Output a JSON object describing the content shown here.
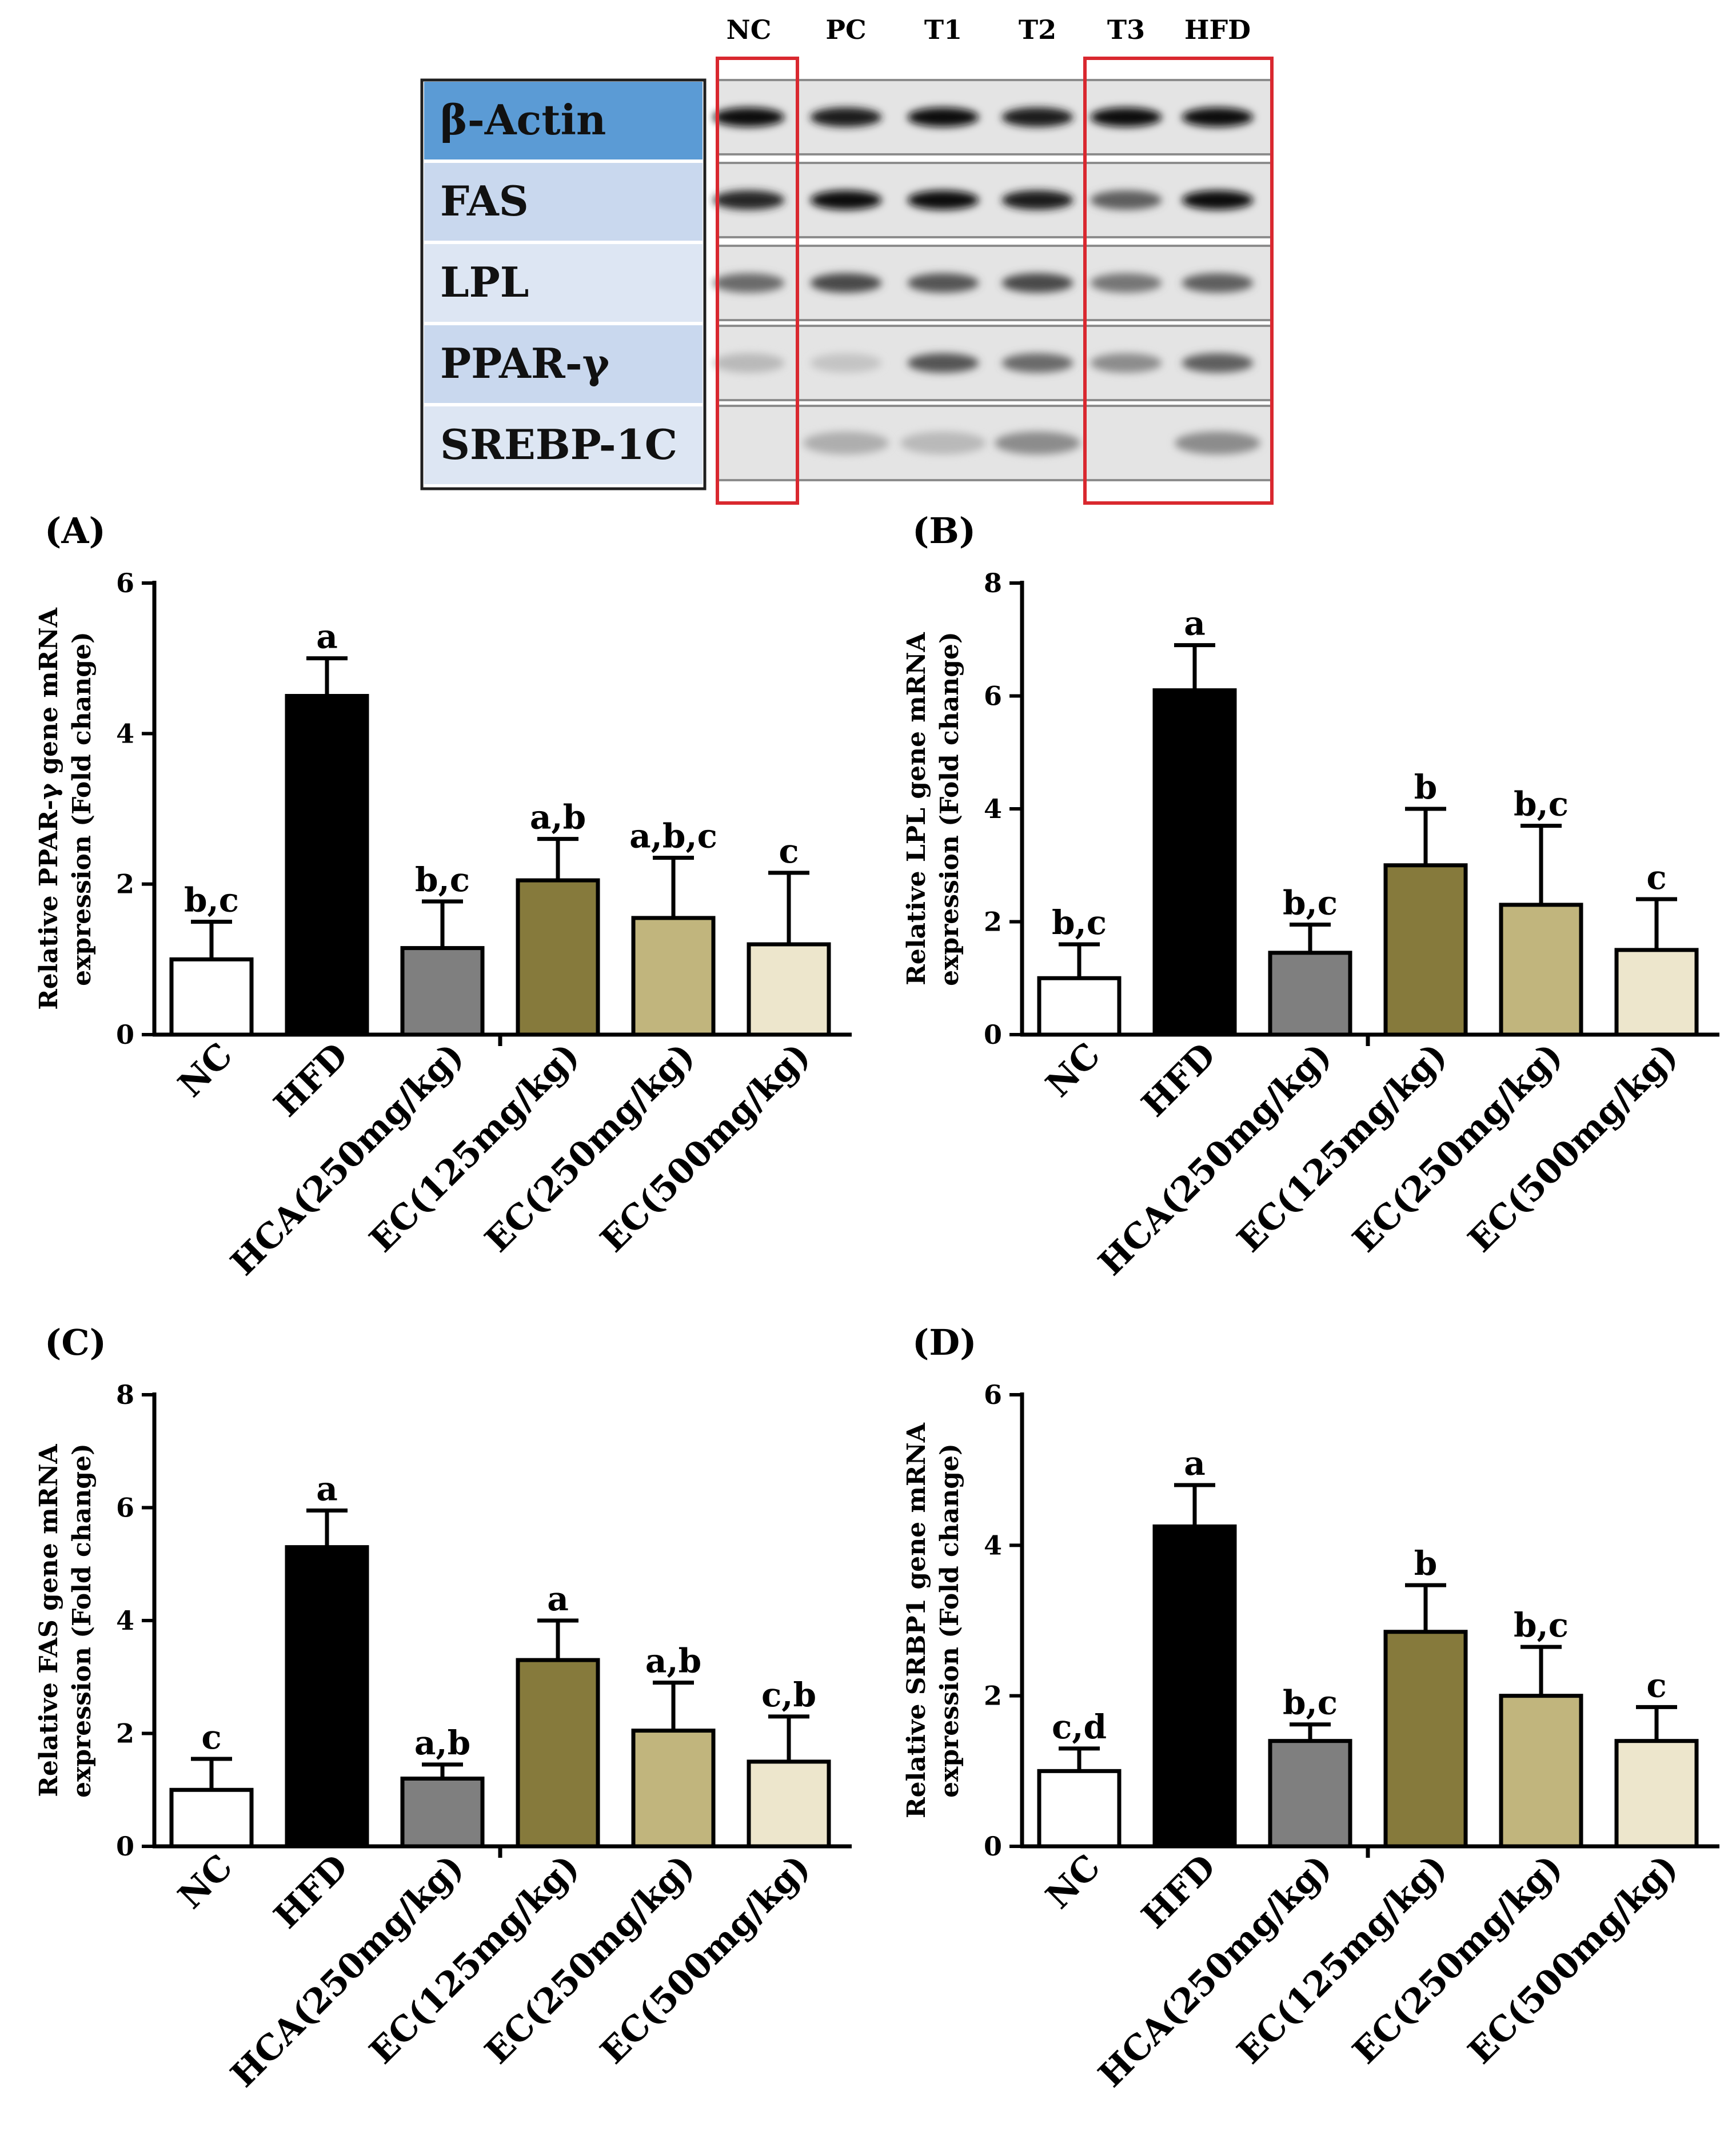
{
  "blot": {
    "lanes": [
      "NC",
      "PC",
      "T1",
      "T2",
      "T3",
      "HFD"
    ],
    "rows": [
      "β-Actin",
      "FAS",
      "LPL",
      "PPAR-γ",
      "SREBP-1C"
    ],
    "row_colors": [
      "#5b9bd5",
      "#c9d8ee",
      "#dde6f3",
      "#c9d8ee",
      "#dde6f3"
    ],
    "highlight_color": "#d9282f",
    "band_intensity": [
      [
        0.95,
        0.9,
        0.95,
        0.9,
        0.95,
        0.95
      ],
      [
        0.85,
        0.95,
        0.95,
        0.9,
        0.6,
        0.95
      ],
      [
        0.55,
        0.7,
        0.65,
        0.7,
        0.5,
        0.6
      ],
      [
        0.2,
        0.15,
        0.65,
        0.55,
        0.4,
        0.6
      ],
      [
        0.0,
        0.25,
        0.2,
        0.4,
        0.0,
        0.4
      ]
    ]
  },
  "chart_data": [
    {
      "panel": "(A)",
      "type": "bar",
      "ylabel": [
        "Relative PPAR-γ gene mRNA",
        "expression (Fold change)"
      ],
      "ylim": [
        0,
        6
      ],
      "yticks": [
        0,
        2,
        4,
        6
      ],
      "categories": [
        "NC",
        "HFD",
        "HCA(250mg/kg)",
        "EC(125mg/kg)",
        "EC(250mg/kg)",
        "EC(500mg/kg)"
      ],
      "values": [
        1.0,
        4.5,
        1.15,
        2.05,
        1.55,
        1.2
      ],
      "errors": [
        0.5,
        0.5,
        0.62,
        0.55,
        0.8,
        0.95
      ],
      "letters": [
        "b,c",
        "a",
        "b,c",
        "a,b",
        "a,b,c",
        "c"
      ],
      "colors": [
        "#ffffff",
        "#000000",
        "#7f7f7f",
        "#867a3c",
        "#c1b57d",
        "#ede6cc"
      ]
    },
    {
      "panel": "(B)",
      "type": "bar",
      "ylabel": [
        "Relative LPL gene mRNA",
        "expression (Fold change)"
      ],
      "ylim": [
        0,
        8
      ],
      "yticks": [
        0,
        2,
        4,
        6,
        8
      ],
      "categories": [
        "NC",
        "HFD",
        "HCA(250mg/kg)",
        "EC(125mg/kg)",
        "EC(250mg/kg)",
        "EC(500mg/kg)"
      ],
      "values": [
        1.0,
        6.1,
        1.45,
        3.0,
        2.3,
        1.5
      ],
      "errors": [
        0.6,
        0.8,
        0.5,
        1.0,
        1.4,
        0.9
      ],
      "letters": [
        "b,c",
        "a",
        "b,c",
        "b",
        "b,c",
        "c"
      ],
      "colors": [
        "#ffffff",
        "#000000",
        "#7f7f7f",
        "#867a3c",
        "#c1b57d",
        "#ede6cc"
      ]
    },
    {
      "panel": "(C)",
      "type": "bar",
      "ylabel": [
        "Relative FAS gene mRNA",
        "expression (Fold change)"
      ],
      "ylim": [
        0,
        8
      ],
      "yticks": [
        0,
        2,
        4,
        6,
        8
      ],
      "categories": [
        "NC",
        "HFD",
        "HCA(250mg/kg)",
        "EC(125mg/kg)",
        "EC(250mg/kg)",
        "EC(500mg/kg)"
      ],
      "values": [
        1.0,
        5.3,
        1.2,
        3.3,
        2.05,
        1.5
      ],
      "errors": [
        0.55,
        0.65,
        0.25,
        0.7,
        0.85,
        0.8
      ],
      "letters": [
        "c",
        "a",
        "a,b",
        "a",
        "a,b",
        "c,b"
      ],
      "colors": [
        "#ffffff",
        "#000000",
        "#7f7f7f",
        "#867a3c",
        "#c1b57d",
        "#ede6cc"
      ]
    },
    {
      "panel": "(D)",
      "type": "bar",
      "ylabel": [
        "Relative SRBP1 gene mRNA",
        "expression (Fold change)"
      ],
      "ylim": [
        0,
        6
      ],
      "yticks": [
        0,
        2,
        4,
        6
      ],
      "categories": [
        "NC",
        "HFD",
        "HCA(250mg/kg)",
        "EC(125mg/kg)",
        "EC(250mg/kg)",
        "EC(500mg/kg)"
      ],
      "values": [
        1.0,
        4.25,
        1.4,
        2.85,
        2.0,
        1.4
      ],
      "errors": [
        0.3,
        0.55,
        0.22,
        0.62,
        0.65,
        0.45
      ],
      "letters": [
        "c,d",
        "a",
        "b,c",
        "b",
        "b,c",
        "c"
      ],
      "colors": [
        "#ffffff",
        "#000000",
        "#7f7f7f",
        "#867a3c",
        "#c1b57d",
        "#ede6cc"
      ]
    }
  ]
}
